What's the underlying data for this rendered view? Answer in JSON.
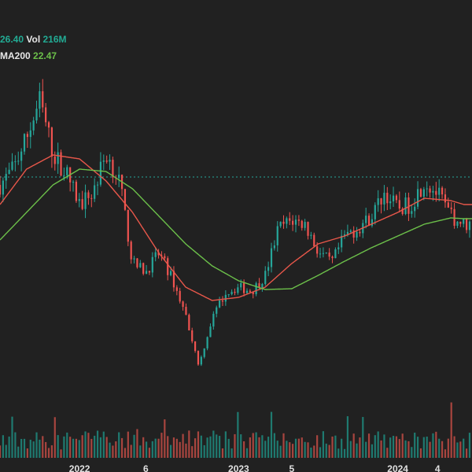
{
  "legend": {
    "close_value": "26.40",
    "vol_label": "Vol",
    "vol_value": "216M",
    "ma_label": "MA200",
    "ma_value": "22.47"
  },
  "colors": {
    "background": "#212121",
    "up": "#26a69a",
    "down": "#ef5350",
    "ma_short": "#e8574a",
    "ma200": "#6cc04a",
    "ref_line": "#26a69a",
    "volume_up": "#1f7a70",
    "volume_down": "#a8453f"
  },
  "chart_data": {
    "type": "candlestick",
    "x_ticks": [
      "2022",
      "6",
      "2023",
      "5",
      "2024",
      "4"
    ],
    "reference_line": "dotted horizontal (teal)",
    "price_path": [
      {
        "x": "2021-07",
        "close": 27.5
      },
      {
        "x": "2021-08",
        "close": 29.5
      },
      {
        "x": "2021-09",
        "close": 33.5
      },
      {
        "x": "2021-10",
        "close": 38.2
      },
      {
        "x": "2021-11",
        "close": 31.5
      },
      {
        "x": "2021-12",
        "close": 29.0
      },
      {
        "x": "2022-01",
        "close": 25.0
      },
      {
        "x": "2022-02",
        "close": 26.5
      },
      {
        "x": "2022-03",
        "close": 31.5
      },
      {
        "x": "2022-04",
        "close": 28.0
      },
      {
        "x": "2022-05",
        "close": 17.5
      },
      {
        "x": "2022-06",
        "close": 16.5
      },
      {
        "x": "2022-07",
        "close": 18.8
      },
      {
        "x": "2022-08",
        "close": 15.5
      },
      {
        "x": "2022-09",
        "close": 11.0
      },
      {
        "x": "2022-10",
        "close": 4.5
      },
      {
        "x": "2022-11",
        "close": 10.5
      },
      {
        "x": "2022-12",
        "close": 13.8
      },
      {
        "x": "2023-01",
        "close": 14.5
      },
      {
        "x": "2023-02",
        "close": 14.0
      },
      {
        "x": "2023-03",
        "close": 16.0
      },
      {
        "x": "2023-04",
        "close": 22.0
      },
      {
        "x": "2023-05",
        "close": 23.0
      },
      {
        "x": "2023-06",
        "close": 22.5
      },
      {
        "x": "2023-07",
        "close": 19.0
      },
      {
        "x": "2023-08",
        "close": 17.5
      },
      {
        "x": "2023-09",
        "close": 21.0
      },
      {
        "x": "2023-10",
        "close": 22.0
      },
      {
        "x": "2023-11",
        "close": 23.5
      },
      {
        "x": "2023-12",
        "close": 26.5
      },
      {
        "x": "2024-01",
        "close": 24.5
      },
      {
        "x": "2024-02",
        "close": 25.0
      },
      {
        "x": "2024-03",
        "close": 28.0
      },
      {
        "x": "2024-04",
        "close": 26.4
      },
      {
        "x": "2024-05",
        "close": 23.5
      },
      {
        "x": "2024-06",
        "close": 22.5
      }
    ],
    "ma_short_path": [
      {
        "x": "2021-07",
        "value": 25.0
      },
      {
        "x": "2021-09",
        "value": 29.5
      },
      {
        "x": "2021-11",
        "value": 31.3
      },
      {
        "x": "2022-01",
        "value": 30.8
      },
      {
        "x": "2022-03",
        "value": 28.0
      },
      {
        "x": "2022-05",
        "value": 24.0
      },
      {
        "x": "2022-07",
        "value": 18.8
      },
      {
        "x": "2022-09",
        "value": 14.5
      },
      {
        "x": "2022-11",
        "value": 12.8
      },
      {
        "x": "2023-01",
        "value": 13.2
      },
      {
        "x": "2023-03",
        "value": 14.5
      },
      {
        "x": "2023-05",
        "value": 17.5
      },
      {
        "x": "2023-07",
        "value": 20.0
      },
      {
        "x": "2023-09",
        "value": 21.0
      },
      {
        "x": "2023-11",
        "value": 22.5
      },
      {
        "x": "2024-01",
        "value": 24.0
      },
      {
        "x": "2024-03",
        "value": 25.8
      },
      {
        "x": "2024-05",
        "value": 25.5
      },
      {
        "x": "2024-06",
        "value": 25.0
      }
    ],
    "ma200_path": [
      {
        "x": "2021-07",
        "value": 20.5
      },
      {
        "x": "2021-09",
        "value": 24.0
      },
      {
        "x": "2021-11",
        "value": 27.5
      },
      {
        "x": "2022-01",
        "value": 29.5
      },
      {
        "x": "2022-03",
        "value": 29.2
      },
      {
        "x": "2022-05",
        "value": 27.0
      },
      {
        "x": "2022-07",
        "value": 23.5
      },
      {
        "x": "2022-09",
        "value": 20.0
      },
      {
        "x": "2022-11",
        "value": 17.2
      },
      {
        "x": "2023-01",
        "value": 15.3
      },
      {
        "x": "2023-03",
        "value": 14.2
      },
      {
        "x": "2023-05",
        "value": 14.3
      },
      {
        "x": "2023-07",
        "value": 16.0
      },
      {
        "x": "2023-09",
        "value": 17.8
      },
      {
        "x": "2023-11",
        "value": 19.5
      },
      {
        "x": "2024-01",
        "value": 21.0
      },
      {
        "x": "2024-03",
        "value": 22.5
      },
      {
        "x": "2024-05",
        "value": 23.3
      },
      {
        "x": "2024-06",
        "value": 23.2
      }
    ],
    "y_range": [
      0,
      45
    ],
    "ref_value": 28.5,
    "x_range": [
      "2021-07",
      "2024-06"
    ],
    "volume_ylim": [
      0,
      300
    ],
    "grid": false,
    "legend_placement": "top-left"
  }
}
